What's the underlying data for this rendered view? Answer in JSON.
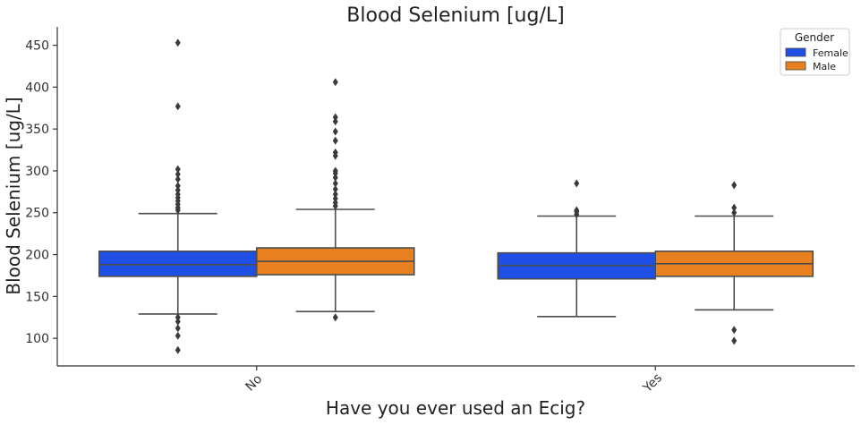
{
  "chart_data": {
    "type": "box",
    "title": "Blood Selenium [ug/L]",
    "xlabel": "Have you ever used an Ecig?",
    "ylabel": "Blood Selenium [ug/L]",
    "ylim": [
      67,
      472
    ],
    "yticks": [
      100,
      150,
      200,
      250,
      300,
      350,
      400,
      450
    ],
    "categories": [
      "No",
      "Yes"
    ],
    "legend": {
      "title": "Gender",
      "position": "top-right"
    },
    "series": [
      {
        "name": "Female",
        "color": "#1f4fe5",
        "boxes": [
          {
            "category": "No",
            "whislo": 129,
            "q1": 174,
            "med": 188,
            "q3": 204,
            "whishi": 249,
            "fliers": [
              86,
              103,
              112,
              120,
              125,
              253,
              256,
              260,
              264,
              268,
              272,
              277,
              282,
              290,
              296,
              302,
              377,
              453
            ]
          },
          {
            "category": "Yes",
            "whislo": 126,
            "q1": 171,
            "med": 187,
            "q3": 202,
            "whishi": 246,
            "fliers": [
              248,
              251,
              253,
              285
            ]
          }
        ]
      },
      {
        "name": "Male",
        "color": "#e8801f",
        "boxes": [
          {
            "category": "No",
            "whislo": 132,
            "q1": 176,
            "med": 192,
            "q3": 208,
            "whishi": 254,
            "fliers": [
              125,
              258,
              262,
              267,
              272,
              278,
              285,
              292,
              297,
              300,
              318,
              322,
              336,
              347,
              359,
              364,
              406
            ]
          },
          {
            "category": "Yes",
            "whislo": 134,
            "q1": 174,
            "med": 189,
            "q3": 204,
            "whishi": 246,
            "fliers": [
              97,
              110,
              250,
              256,
              283
            ]
          }
        ]
      }
    ]
  }
}
